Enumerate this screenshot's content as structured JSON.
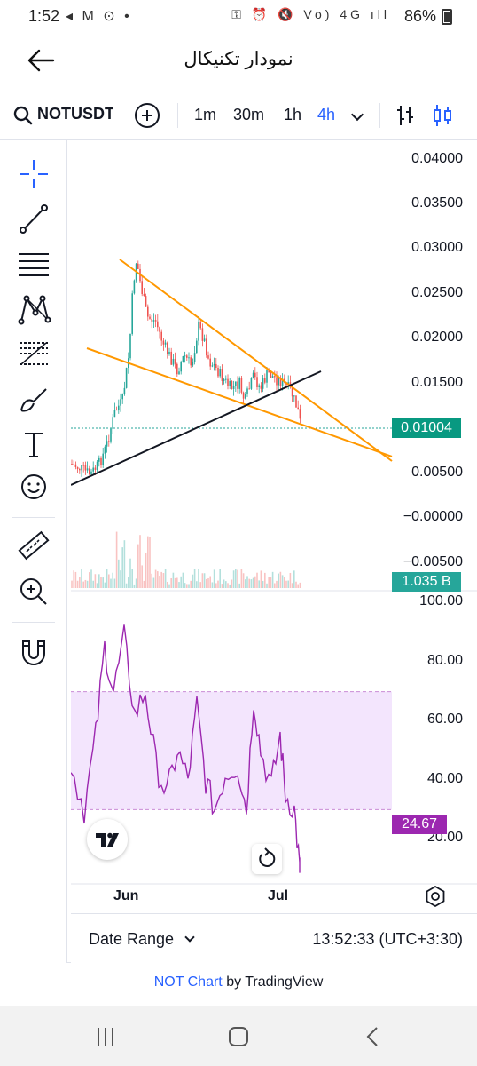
{
  "status_bar": {
    "time": "1:52",
    "left_icons": "◂ M ⊙ •",
    "right_icons": "⚿ ⏰ 🔇 Vo) 4G ıll",
    "battery": "86%"
  },
  "header": {
    "title": "نمودار تکنیکال"
  },
  "toolbar_top": {
    "symbol": "NOTUSDT",
    "timeframes": [
      "1m",
      "30m",
      "1h",
      "4h"
    ],
    "active_timeframe": "4h"
  },
  "drawing_tools": [
    {
      "name": "crosshair-icon"
    },
    {
      "name": "trend-line-icon"
    },
    {
      "name": "horizontal-lines-icon"
    },
    {
      "name": "pattern-icon"
    },
    {
      "name": "fib-retracement-icon"
    },
    {
      "name": "brush-icon"
    },
    {
      "name": "text-tool-icon"
    },
    {
      "name": "emoji-icon"
    },
    {
      "name": "ruler-icon"
    },
    {
      "name": "zoom-in-icon"
    },
    {
      "name": "magnet-icon"
    }
  ],
  "price_axis": {
    "labels": [
      "0.04000",
      "0.03500",
      "0.03000",
      "0.02500",
      "0.02000",
      "0.01500",
      "0.00500",
      "−0.00000",
      "−0.00500"
    ],
    "last_price": "0.01004",
    "volume": "1.035 B"
  },
  "rsi_axis": {
    "labels": [
      "100.00",
      "80.00",
      "60.00",
      "40.00",
      "20.00"
    ],
    "value": "24.67",
    "upper_band": 70,
    "lower_band": 30
  },
  "time_axis": {
    "labels": [
      "Jun",
      "Jul"
    ]
  },
  "bottom_bar": {
    "date_range": "Date Range",
    "clock": "13:52:33 (UTC+3:30)"
  },
  "footer": {
    "link": "NOT Chart",
    "by": " by ",
    "brand": "TradingView"
  },
  "colors": {
    "up": "#26a69a",
    "down": "#ef5350",
    "trendline_orange": "#ff9800",
    "trendline_black": "#131722",
    "rsi_line": "#9c27b0",
    "rsi_band": "#f3e5fd",
    "accent": "#2962ff"
  }
}
